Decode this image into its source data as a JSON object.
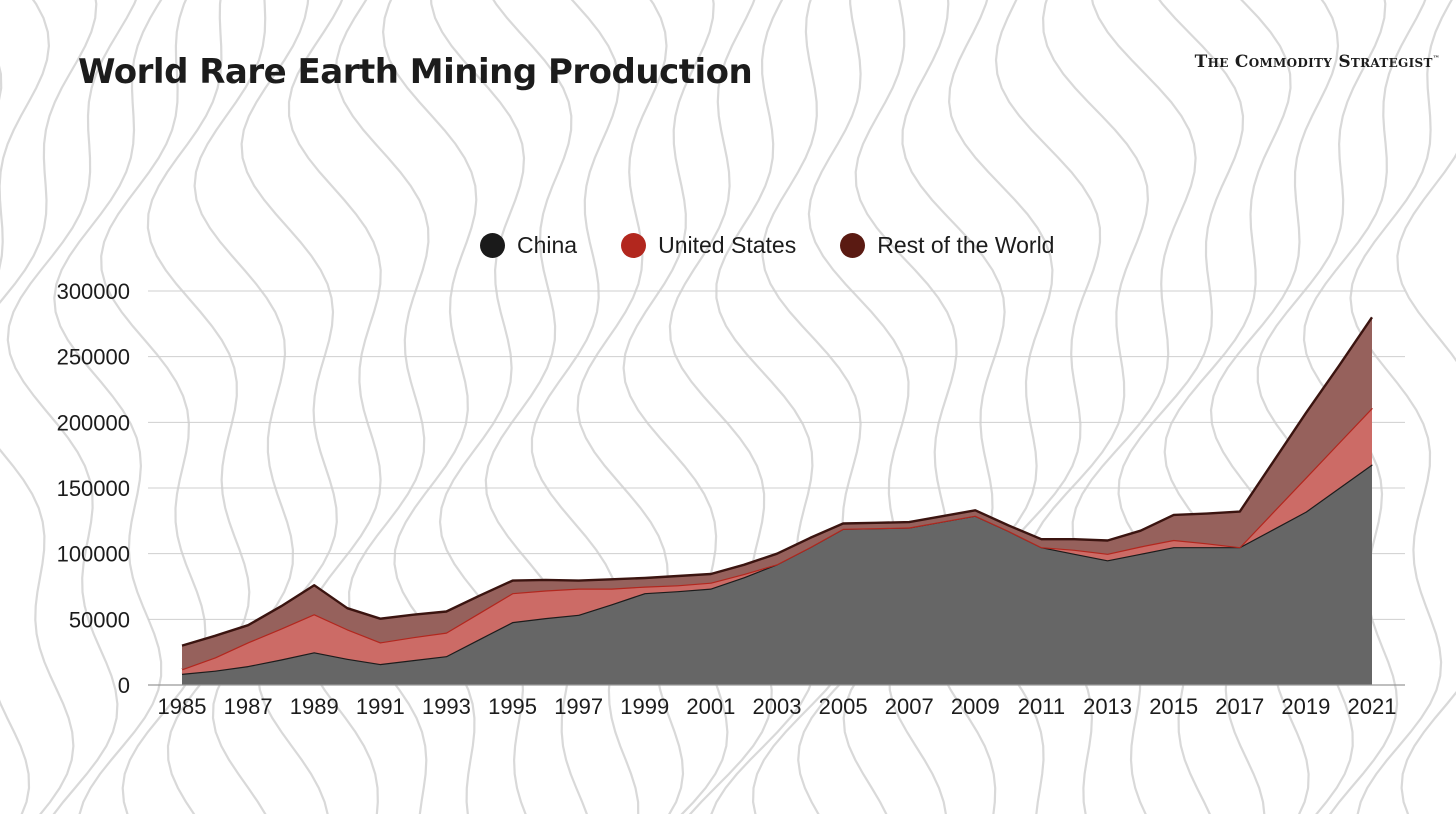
{
  "header": {
    "title": "World Rare Earth Mining Production",
    "brand": "The Commodity Strategist",
    "brand_mark": "™"
  },
  "colors": {
    "china": "#666666",
    "china_line": "#1c1c1c",
    "us": "#cc6b66",
    "us_line": "#b2271e",
    "row": "#96615c",
    "row_line": "#3b1410",
    "legend_china": "#1a1a1a",
    "legend_us": "#b2271e",
    "legend_row": "#5a1a12"
  },
  "legend": [
    {
      "label": "China",
      "color_key": "legend_china"
    },
    {
      "label": "United States",
      "color_key": "legend_us"
    },
    {
      "label": "Rest of the World",
      "color_key": "legend_row"
    }
  ],
  "chart_data": {
    "type": "area",
    "stacked": true,
    "title": "World Rare Earth Mining Production",
    "xlabel": "",
    "ylabel": "",
    "ylim": [
      0,
      300000
    ],
    "yticks": [
      "0",
      "50000",
      "100000",
      "150000",
      "200000",
      "250000",
      "300000"
    ],
    "ytick_values": [
      0,
      50000,
      100000,
      150000,
      200000,
      250000,
      300000
    ],
    "grid": true,
    "legend_position": "top-center",
    "x": [
      1985,
      1986,
      1987,
      1988,
      1989,
      1990,
      1991,
      1992,
      1993,
      1994,
      1995,
      1996,
      1997,
      1998,
      1999,
      2000,
      2001,
      2002,
      2003,
      2004,
      2005,
      2006,
      2007,
      2008,
      2009,
      2010,
      2011,
      2012,
      2013,
      2014,
      2015,
      2016,
      2017,
      2018,
      2019,
      2020,
      2021
    ],
    "xtick_labels": [
      "1985",
      "1987",
      "1989",
      "1991",
      "1993",
      "1995",
      "1997",
      "1999",
      "2001",
      "2003",
      "2005",
      "2007",
      "2009",
      "2011",
      "2013",
      "2015",
      "2017",
      "2019",
      "2021"
    ],
    "series": [
      {
        "name": "China",
        "values": [
          8500,
          11000,
          14500,
          19500,
          25000,
          20000,
          16000,
          19000,
          22000,
          35000,
          48000,
          51000,
          53500,
          61500,
          70000,
          71500,
          73500,
          82000,
          92000,
          105000,
          119000,
          119500,
          120000,
          124500,
          129000,
          117500,
          105000,
          100000,
          95000,
          100000,
          105000,
          105000,
          105000,
          118500,
          132000,
          150000,
          168000
        ]
      },
      {
        "name": "United States",
        "values": [
          3500,
          10000,
          18000,
          23500,
          29000,
          22500,
          16500,
          17500,
          18000,
          20000,
          22000,
          21000,
          20000,
          12000,
          5000,
          4500,
          4500,
          2500,
          0,
          0,
          0,
          0,
          0,
          0,
          0,
          0,
          0,
          3000,
          5000,
          5500,
          5500,
          3000,
          0,
          13000,
          26000,
          34500,
          43000
        ]
      },
      {
        "name": "Rest of the World",
        "values": [
          18000,
          16500,
          13000,
          17000,
          22000,
          16000,
          18000,
          17000,
          16000,
          13000,
          9500,
          8000,
          6000,
          7000,
          6500,
          7000,
          6500,
          7000,
          8000,
          7000,
          4000,
          4000,
          4000,
          4000,
          4000,
          4000,
          6000,
          8000,
          10000,
          12000,
          19000,
          22500,
          27000,
          38000,
          49000,
          58500,
          69000
        ]
      }
    ]
  }
}
